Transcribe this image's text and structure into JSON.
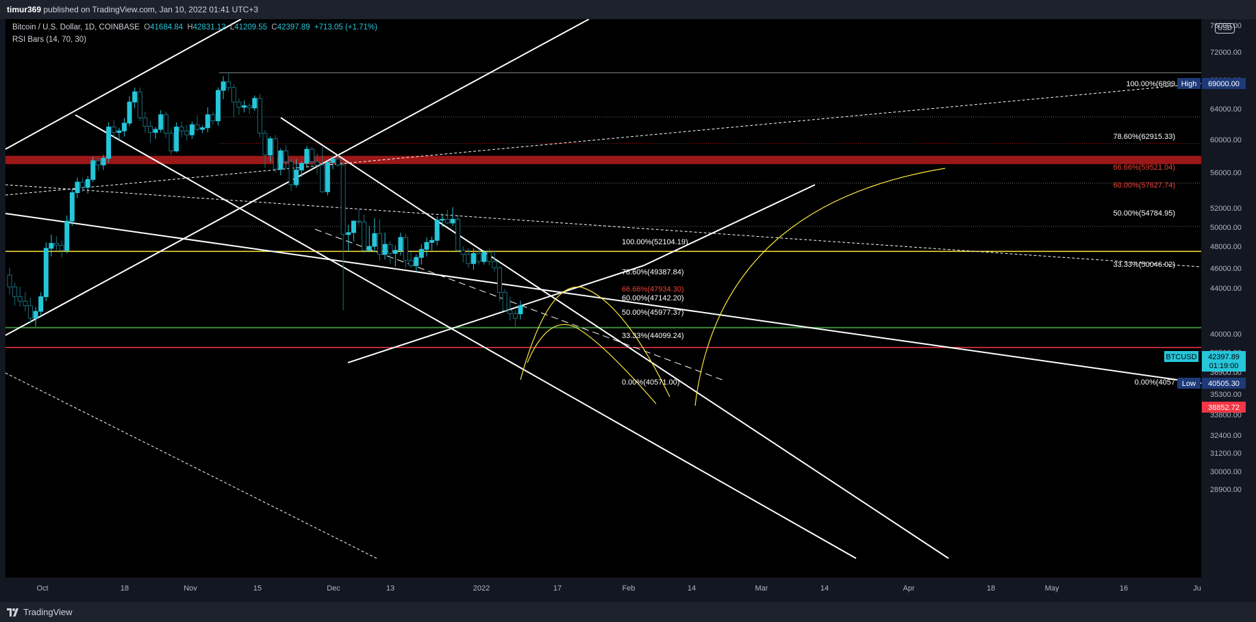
{
  "header": {
    "author": "timur369",
    "published_text": "published on TradingView.com, Jan 10, 2022 01:41 UTC+3"
  },
  "legend": {
    "symbol": "Bitcoin / U.S. Dollar, 1D, COINBASE",
    "open_label": "O",
    "open": "41684.84",
    "high_label": "H",
    "high": "42831.12",
    "low_label": "L",
    "low": "41209.55",
    "close_label": "C",
    "close": "42397.89",
    "change": "+713.05 (+1.71%)",
    "indicator": "RSI Bars (14, 70, 30)"
  },
  "currency_badge": "USD",
  "footer": {
    "brand": "TradingView"
  },
  "colors": {
    "background": "#000000",
    "up_candle": "#26c6da",
    "axis_text": "#b2b5be",
    "resistance_zone": "#b71c1c",
    "yellow_line": "#ffeb3b",
    "green_line": "#4caf50",
    "red_line": "#f23645"
  },
  "chart_data": {
    "type": "candlestick",
    "symbol": "BTCUSD",
    "y_axis_ticks": [
      "76000.00",
      "72000.00",
      "68000.00",
      "64000.00",
      "60000.00",
      "56000.00",
      "52000.00",
      "50000.00",
      "48000.00",
      "46000.00",
      "44000.00",
      "40000.00",
      "38500.00",
      "36900.00",
      "35300.00",
      "33800.00",
      "32400.00",
      "31200.00",
      "30000.00",
      "28900.00"
    ],
    "x_axis_ticks": [
      "Oct",
      "18",
      "Nov",
      "15",
      "Dec",
      "13",
      "2022",
      "17",
      "Feb",
      "14",
      "Mar",
      "14",
      "Apr",
      "18",
      "May",
      "16",
      "Ju"
    ],
    "price_tags": [
      {
        "label": "High",
        "value": "69000.00",
        "color": "#1e3a78"
      },
      {
        "label": "BTCUSD",
        "value": "42397.89",
        "sub": "01:19:00",
        "color": "#26c6da"
      },
      {
        "label": "Low",
        "value": "40505.30",
        "color": "#1e3a78"
      },
      {
        "label": "",
        "value": "38852.72",
        "color": "#f23645"
      }
    ],
    "fib_right": [
      {
        "level": "100.00%(6899",
        "color": "#ffffff"
      },
      {
        "level": "78.60%(62915.33)",
        "color": "#ffffff"
      },
      {
        "level": "66.66%(59521.04)",
        "color": "#f44336"
      },
      {
        "level": "60.00%(57627.74)",
        "color": "#f44336"
      },
      {
        "level": "50.00%(54784.95)",
        "color": "#ffffff"
      },
      {
        "level": "33.33%(50046.02)",
        "color": "#ffffff"
      },
      {
        "level": "0.00%(4057",
        "color": "#ffffff"
      }
    ],
    "fib_mid": [
      {
        "level": "100.00%(52104.19)",
        "color": "#ffffff"
      },
      {
        "level": "78.60%(49387.84)",
        "color": "#ffffff"
      },
      {
        "level": "66.66%(47934.30)",
        "color": "#f44336"
      },
      {
        "level": "60.00%(47142.20)",
        "color": "#ffffff"
      },
      {
        "level": "50.00%(45977.37)",
        "color": "#ffffff"
      },
      {
        "level": "33.33%(44099.24)",
        "color": "#ffffff"
      },
      {
        "level": "0.00%(40571.00)",
        "color": "#ffffff"
      }
    ],
    "candles": [
      [
        45200,
        45900,
        43400,
        44100
      ],
      [
        44100,
        44500,
        42400,
        43200
      ],
      [
        43200,
        44100,
        42300,
        42800
      ],
      [
        42800,
        43600,
        41900,
        42400
      ],
      [
        42400,
        43100,
        40800,
        41300
      ],
      [
        41300,
        42300,
        40600,
        41900
      ],
      [
        41900,
        43600,
        41600,
        43200
      ],
      [
        43200,
        48400,
        42800,
        47800
      ],
      [
        47800,
        49200,
        47000,
        48300
      ],
      [
        48300,
        49000,
        47600,
        48100
      ],
      [
        48100,
        48600,
        46900,
        47600
      ],
      [
        47600,
        51200,
        47300,
        50600
      ],
      [
        50600,
        54100,
        50100,
        53700
      ],
      [
        53700,
        55400,
        53100,
        54900
      ],
      [
        54900,
        55400,
        53800,
        54300
      ],
      [
        54300,
        55600,
        53600,
        55200
      ],
      [
        55200,
        57900,
        54900,
        57400
      ],
      [
        57400,
        57800,
        56200,
        56900
      ],
      [
        56900,
        58100,
        56300,
        57700
      ],
      [
        57700,
        62200,
        57200,
        61600
      ],
      [
        61600,
        62500,
        60100,
        60900
      ],
      [
        60900,
        61500,
        59800,
        61100
      ],
      [
        61100,
        62800,
        60400,
        62100
      ],
      [
        62100,
        65700,
        61700,
        64900
      ],
      [
        64900,
        66900,
        64100,
        66300
      ],
      [
        66300,
        66900,
        62400,
        62800
      ],
      [
        62800,
        63600,
        60900,
        61700
      ],
      [
        61700,
        62400,
        59600,
        60900
      ],
      [
        60900,
        61600,
        60100,
        61300
      ],
      [
        61300,
        63800,
        60900,
        63200
      ],
      [
        63200,
        63600,
        60200,
        60800
      ],
      [
        60800,
        61400,
        58100,
        58600
      ],
      [
        58600,
        62200,
        58400,
        61600
      ],
      [
        61600,
        62300,
        60300,
        61100
      ],
      [
        61100,
        61900,
        59900,
        60600
      ],
      [
        60600,
        62300,
        60100,
        61900
      ],
      [
        61900,
        63100,
        61100,
        61300
      ],
      [
        61300,
        61800,
        60800,
        61500
      ],
      [
        61500,
        64200,
        60900,
        63200
      ],
      [
        63200,
        63600,
        61900,
        62400
      ],
      [
        62400,
        66900,
        61800,
        66500
      ],
      [
        66500,
        68500,
        65300,
        67700
      ],
      [
        67700,
        69000,
        66400,
        66900
      ],
      [
        66900,
        67400,
        62800,
        64900
      ],
      [
        64900,
        65400,
        63200,
        64200
      ],
      [
        64200,
        65100,
        63500,
        64400
      ],
      [
        64400,
        64700,
        63300,
        64100
      ],
      [
        64100,
        65800,
        63700,
        65400
      ],
      [
        65400,
        66000,
        60300,
        60800
      ],
      [
        60800,
        61200,
        56500,
        58100
      ],
      [
        58100,
        60400,
        57300,
        60100
      ],
      [
        60100,
        60600,
        56000,
        56400
      ],
      [
        56400,
        58900,
        55700,
        58600
      ],
      [
        58600,
        59300,
        56400,
        57300
      ],
      [
        57300,
        57700,
        53900,
        54600
      ],
      [
        54600,
        57600,
        54300,
        56300
      ],
      [
        56300,
        57300,
        55500,
        57100
      ],
      [
        57100,
        59200,
        56700,
        58800
      ],
      [
        58800,
        59100,
        56600,
        57300
      ],
      [
        57300,
        58300,
        55800,
        56900
      ],
      [
        56900,
        59100,
        53700,
        53800
      ],
      [
        53800,
        57400,
        53400,
        57200
      ],
      [
        57200,
        57900,
        56400,
        57600
      ],
      [
        57600,
        58100,
        56700,
        56900
      ],
      [
        56900,
        57300,
        42000,
        49200
      ],
      [
        49200,
        50200,
        47500,
        49400
      ],
      [
        49400,
        50700,
        48500,
        50600
      ],
      [
        50600,
        51900,
        50200,
        50500
      ],
      [
        50500,
        51300,
        47300,
        47600
      ],
      [
        47600,
        50100,
        47400,
        48000
      ],
      [
        48000,
        50900,
        47400,
        49300
      ],
      [
        49300,
        50800,
        46600,
        47200
      ],
      [
        47200,
        49400,
        46700,
        48200
      ],
      [
        48200,
        48500,
        46300,
        47300
      ],
      [
        47300,
        48100,
        46000,
        47600
      ],
      [
        47600,
        49400,
        47100,
        48900
      ],
      [
        48900,
        49300,
        45900,
        46600
      ],
      [
        46600,
        47400,
        45900,
        46100
      ],
      [
        46100,
        47200,
        45500,
        46900
      ],
      [
        46900,
        48200,
        46200,
        47700
      ],
      [
        47700,
        48900,
        47000,
        48400
      ],
      [
        48400,
        49000,
        47600,
        48600
      ],
      [
        48600,
        51100,
        48100,
        50700
      ],
      [
        50700,
        51400,
        50000,
        50800
      ],
      [
        50800,
        51800,
        50300,
        50400
      ],
      [
        50400,
        52100,
        50100,
        50800
      ],
      [
        50800,
        51300,
        47400,
        47600
      ],
      [
        47600,
        48000,
        46400,
        47200
      ],
      [
        47200,
        47800,
        45900,
        46300
      ],
      [
        46300,
        47800,
        45700,
        47300
      ],
      [
        47300,
        47700,
        46200,
        46500
      ],
      [
        46500,
        47600,
        46200,
        47400
      ],
      [
        47400,
        47800,
        46100,
        46500
      ],
      [
        46500,
        47500,
        45500,
        45900
      ],
      [
        45900,
        46000,
        42800,
        43600
      ],
      [
        43600,
        43900,
        41900,
        42000
      ],
      [
        42000,
        43200,
        41100,
        41700
      ],
      [
        41700,
        42000,
        40600,
        41300
      ],
      [
        41684,
        42831,
        41210,
        42398
      ]
    ]
  }
}
